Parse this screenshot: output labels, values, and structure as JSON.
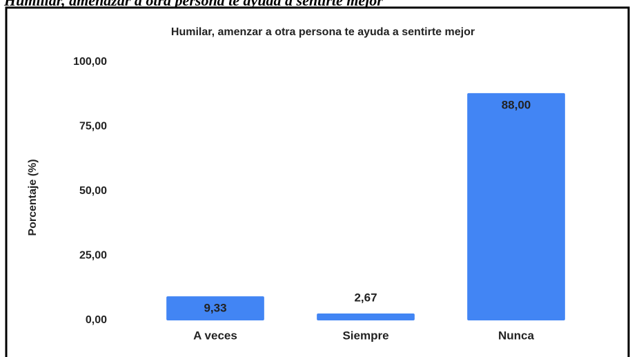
{
  "caption": "Humillar, amenazar a otra persona te ayuda a sentirte mejor",
  "chart_data": {
    "type": "bar",
    "title": "Humilar, amenzar a otra persona te ayuda a sentirte mejor",
    "y_label": "Porcentaje (%)",
    "categories": [
      "A veces",
      "Siempre",
      "Nunca"
    ],
    "values": [
      9.33,
      2.67,
      88.0
    ],
    "value_labels": [
      "9,33",
      "2,67",
      "88,00"
    ],
    "color": "#4285f4",
    "ylim": [
      0,
      100
    ],
    "yticks": [
      {
        "value": 0,
        "label": "0,00"
      },
      {
        "value": 25,
        "label": "25,00"
      },
      {
        "value": 50,
        "label": "50,00"
      },
      {
        "value": 75,
        "label": "75,00"
      },
      {
        "value": 100,
        "label": "100,00"
      }
    ],
    "grid": false
  }
}
